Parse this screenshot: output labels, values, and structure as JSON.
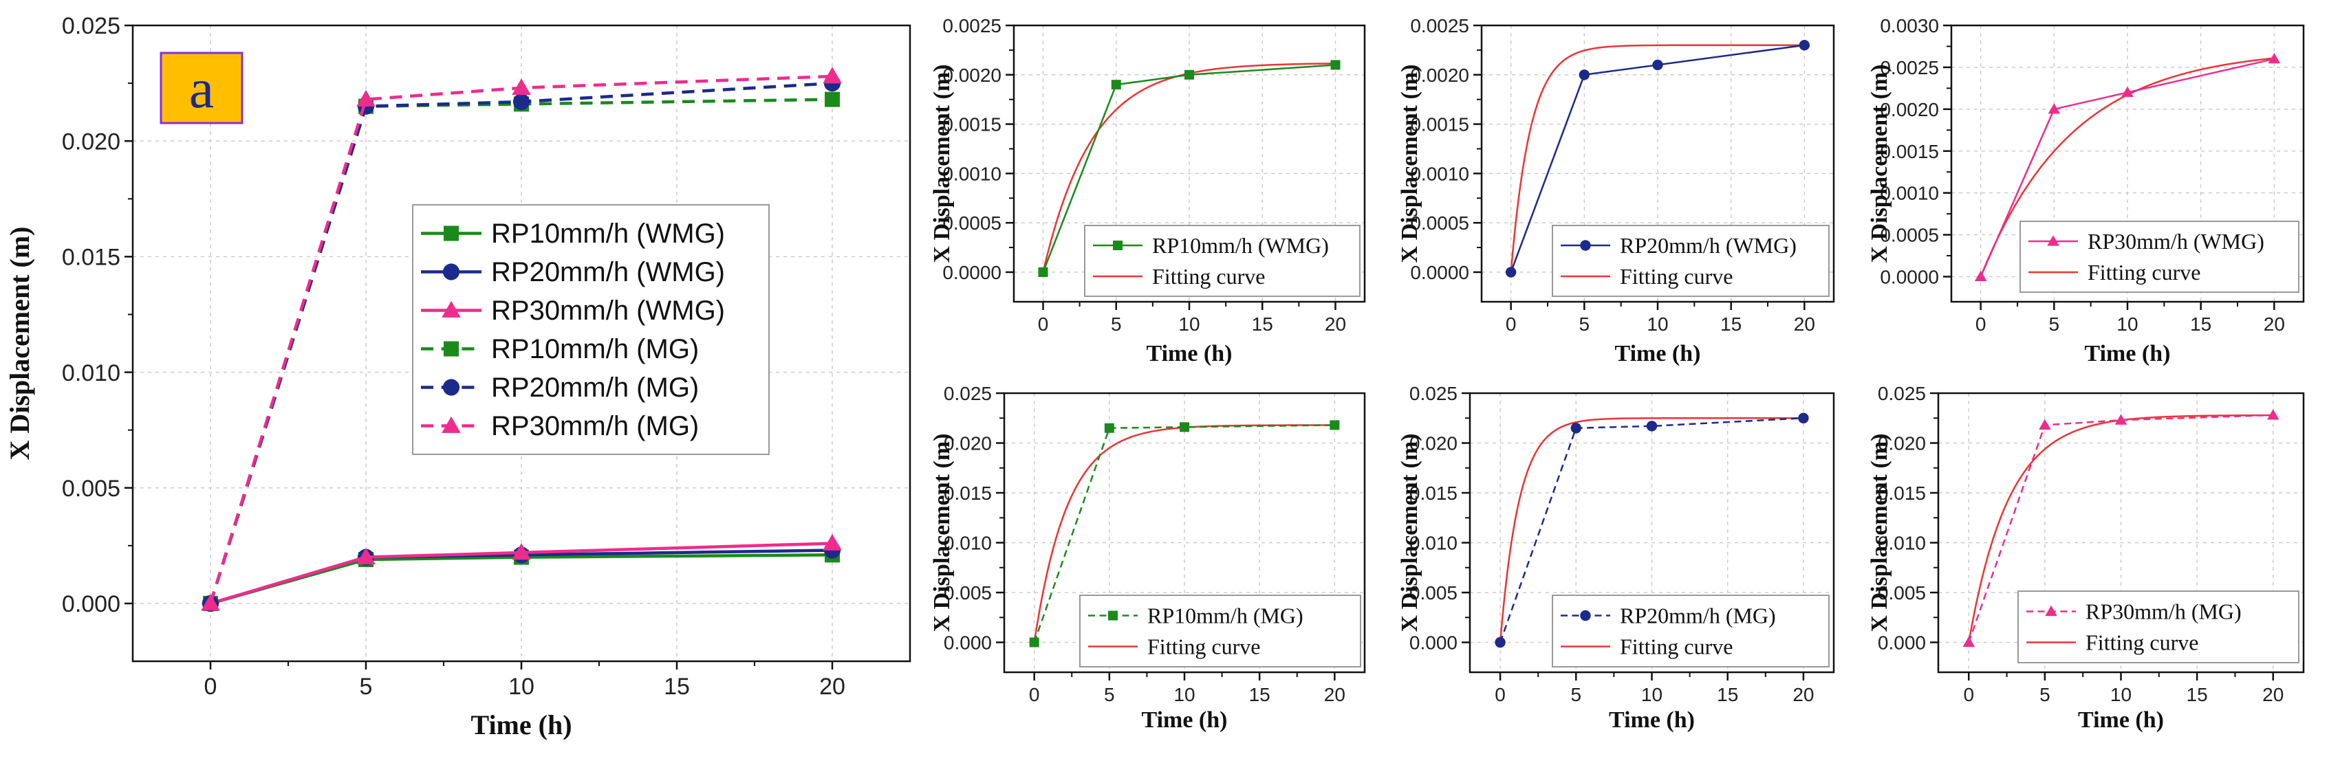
{
  "figure": {
    "panel_label": "a",
    "colors": {
      "green": "#1a8a1a",
      "blue": "#1c2a8c",
      "pink": "#ee2c8c",
      "fit": "#ee3333",
      "grid": "#cccccc",
      "badge_bg": "#ffbf00",
      "badge_border": "#8a2be2"
    }
  },
  "chart_data": [
    {
      "id": "main",
      "type": "line",
      "xlabel": "Time (h)",
      "ylabel": "X Displacement (m)",
      "xlim": [
        -2.5,
        22.5
      ],
      "ylim": [
        -0.0025,
        0.025
      ],
      "xticks": [
        0,
        5,
        10,
        15,
        20
      ],
      "xtick_labels": [
        "0",
        "5",
        "10",
        "15",
        "20"
      ],
      "yticks": [
        0,
        0.005,
        0.01,
        0.015,
        0.02,
        0.025
      ],
      "ytick_labels": [
        "0.000",
        "0.005",
        "0.010",
        "0.015",
        "0.020",
        "0.025"
      ],
      "grid": true,
      "legend_position": "center",
      "x": [
        0,
        5,
        10,
        20
      ],
      "series": [
        {
          "name": "RP10mm/h (WMG)",
          "values": [
            0,
            0.0019,
            0.002,
            0.0021
          ],
          "color": "green",
          "marker": "square",
          "dash": false
        },
        {
          "name": "RP20mm/h (WMG)",
          "values": [
            0,
            0.002,
            0.0021,
            0.0023
          ],
          "color": "blue",
          "marker": "circle",
          "dash": false
        },
        {
          "name": "RP30mm/h (WMG)",
          "values": [
            0,
            0.002,
            0.0022,
            0.0026
          ],
          "color": "pink",
          "marker": "triangle",
          "dash": false
        },
        {
          "name": "RP10mm/h (MG)",
          "values": [
            0,
            0.0215,
            0.0216,
            0.0218
          ],
          "color": "green",
          "marker": "square",
          "dash": true
        },
        {
          "name": "RP20mm/h (MG)",
          "values": [
            0,
            0.0215,
            0.0217,
            0.0225
          ],
          "color": "blue",
          "marker": "circle",
          "dash": true
        },
        {
          "name": "RP30mm/h (MG)",
          "values": [
            0,
            0.0218,
            0.0223,
            0.0228
          ],
          "color": "pink",
          "marker": "triangle",
          "dash": true
        }
      ]
    },
    {
      "id": "sub1",
      "type": "line",
      "xlabel": "Time (h)",
      "ylabel": "X Displacement (m)",
      "xlim": [
        -2,
        22
      ],
      "ylim": [
        -0.0003,
        0.0025
      ],
      "xticks": [
        0,
        5,
        10,
        15,
        20
      ],
      "xtick_labels": [
        "0",
        "5",
        "10",
        "15",
        "20"
      ],
      "yticks": [
        0,
        0.0005,
        0.001,
        0.0015,
        0.002,
        0.0025
      ],
      "ytick_labels": [
        "0.0000",
        "0.0005",
        "0.0010",
        "0.0015",
        "0.0020",
        "0.0025"
      ],
      "grid": true,
      "legend_position": "bottom-right",
      "x": [
        0,
        5,
        10,
        20
      ],
      "series": [
        {
          "name": "RP10mm/h (WMG)",
          "values": [
            0,
            0.0019,
            0.002,
            0.0021
          ],
          "color": "green",
          "marker": "square",
          "dash": false
        }
      ],
      "fit": {
        "name": "Fitting curve",
        "asymptote": 0.00212,
        "rate_per_h": 0.3
      }
    },
    {
      "id": "sub2",
      "type": "line",
      "xlabel": "Time (h)",
      "ylabel": "X Displacement (m)",
      "xlim": [
        -2,
        22
      ],
      "ylim": [
        -0.0003,
        0.0025
      ],
      "xticks": [
        0,
        5,
        10,
        15,
        20
      ],
      "xtick_labels": [
        "0",
        "5",
        "10",
        "15",
        "20"
      ],
      "yticks": [
        0,
        0.0005,
        0.001,
        0.0015,
        0.002,
        0.0025
      ],
      "ytick_labels": [
        "0.0000",
        "0.0005",
        "0.0010",
        "0.0015",
        "0.0020",
        "0.0025"
      ],
      "grid": true,
      "legend_position": "bottom-right",
      "x": [
        0,
        5,
        10,
        20
      ],
      "series": [
        {
          "name": "RP20mm/h (WMG)",
          "values": [
            0,
            0.002,
            0.0021,
            0.0023
          ],
          "color": "blue",
          "marker": "circle",
          "dash": false
        }
      ],
      "fit": {
        "name": "Fitting curve",
        "asymptote": 0.0023,
        "rate_per_h": 0.75
      }
    },
    {
      "id": "sub3",
      "type": "line",
      "xlabel": "Time (h)",
      "ylabel": "X Displacement (m)",
      "xlim": [
        -2,
        22
      ],
      "ylim": [
        -0.0003,
        0.003
      ],
      "xticks": [
        0,
        5,
        10,
        15,
        20
      ],
      "xtick_labels": [
        "0",
        "5",
        "10",
        "15",
        "20"
      ],
      "yticks": [
        0,
        0.0005,
        0.001,
        0.0015,
        0.002,
        0.0025,
        0.003
      ],
      "ytick_labels": [
        "0.0000",
        "0.0005",
        "0.0010",
        "0.0015",
        "0.0020",
        "0.0025",
        "0.0030"
      ],
      "grid": true,
      "legend_position": "top-right",
      "x": [
        0,
        5,
        10,
        20
      ],
      "series": [
        {
          "name": "RP30mm/h (WMG)",
          "values": [
            0,
            0.002,
            0.0022,
            0.0026
          ],
          "color": "pink",
          "marker": "triangle",
          "dash": false
        }
      ],
      "fit": {
        "name": "Fitting curve",
        "asymptote": 0.00272,
        "rate_per_h": 0.16
      }
    },
    {
      "id": "sub4",
      "type": "line",
      "xlabel": "Time (h)",
      "ylabel": "X Displacement (m)",
      "xlim": [
        -2,
        22
      ],
      "ylim": [
        -0.003,
        0.025
      ],
      "xticks": [
        0,
        5,
        10,
        15,
        20
      ],
      "xtick_labels": [
        "0",
        "5",
        "10",
        "15",
        "20"
      ],
      "yticks": [
        0,
        0.005,
        0.01,
        0.015,
        0.02,
        0.025
      ],
      "ytick_labels": [
        "0.000",
        "0.005",
        "0.010",
        "0.015",
        "0.020",
        "0.025"
      ],
      "grid": true,
      "legend_position": "bottom-right",
      "x": [
        0,
        5,
        10,
        20
      ],
      "series": [
        {
          "name": "RP10mm/h (MG)",
          "values": [
            0,
            0.0215,
            0.0216,
            0.0218
          ],
          "color": "green",
          "marker": "square",
          "dash": true
        }
      ],
      "fit": {
        "name": "Fitting curve",
        "asymptote": 0.0218,
        "rate_per_h": 0.45
      }
    },
    {
      "id": "sub5",
      "type": "line",
      "xlabel": "Time (h)",
      "ylabel": "X Displacement (m)",
      "xlim": [
        -2,
        22
      ],
      "ylim": [
        -0.003,
        0.025
      ],
      "xticks": [
        0,
        5,
        10,
        15,
        20
      ],
      "xtick_labels": [
        "0",
        "5",
        "10",
        "15",
        "20"
      ],
      "yticks": [
        0,
        0.005,
        0.01,
        0.015,
        0.02,
        0.025
      ],
      "ytick_labels": [
        "0.000",
        "0.005",
        "0.010",
        "0.015",
        "0.020",
        "0.025"
      ],
      "grid": true,
      "legend_position": "bottom-right",
      "x": [
        0,
        5,
        10,
        20
      ],
      "series": [
        {
          "name": "RP20mm/h (MG)",
          "values": [
            0,
            0.0215,
            0.0217,
            0.0225
          ],
          "color": "blue",
          "marker": "circle",
          "dash": true
        }
      ],
      "fit": {
        "name": "Fitting curve",
        "asymptote": 0.0225,
        "rate_per_h": 0.8
      }
    },
    {
      "id": "sub6",
      "type": "line",
      "xlabel": "Time (h)",
      "ylabel": "X Displacement (m)",
      "xlim": [
        -2,
        22
      ],
      "ylim": [
        -0.003,
        0.025
      ],
      "xticks": [
        0,
        5,
        10,
        15,
        20
      ],
      "xtick_labels": [
        "0",
        "5",
        "10",
        "15",
        "20"
      ],
      "yticks": [
        0,
        0.005,
        0.01,
        0.015,
        0.02,
        0.025
      ],
      "ytick_labels": [
        "0.000",
        "0.005",
        "0.010",
        "0.015",
        "0.020",
        "0.025"
      ],
      "grid": true,
      "legend_position": "bottom-right",
      "x": [
        0,
        5,
        10,
        20
      ],
      "series": [
        {
          "name": "RP30mm/h (MG)",
          "values": [
            0,
            0.0218,
            0.0223,
            0.0228
          ],
          "color": "pink",
          "marker": "triangle",
          "dash": true
        }
      ],
      "fit": {
        "name": "Fitting curve",
        "asymptote": 0.0228,
        "rate_per_h": 0.38
      }
    }
  ]
}
